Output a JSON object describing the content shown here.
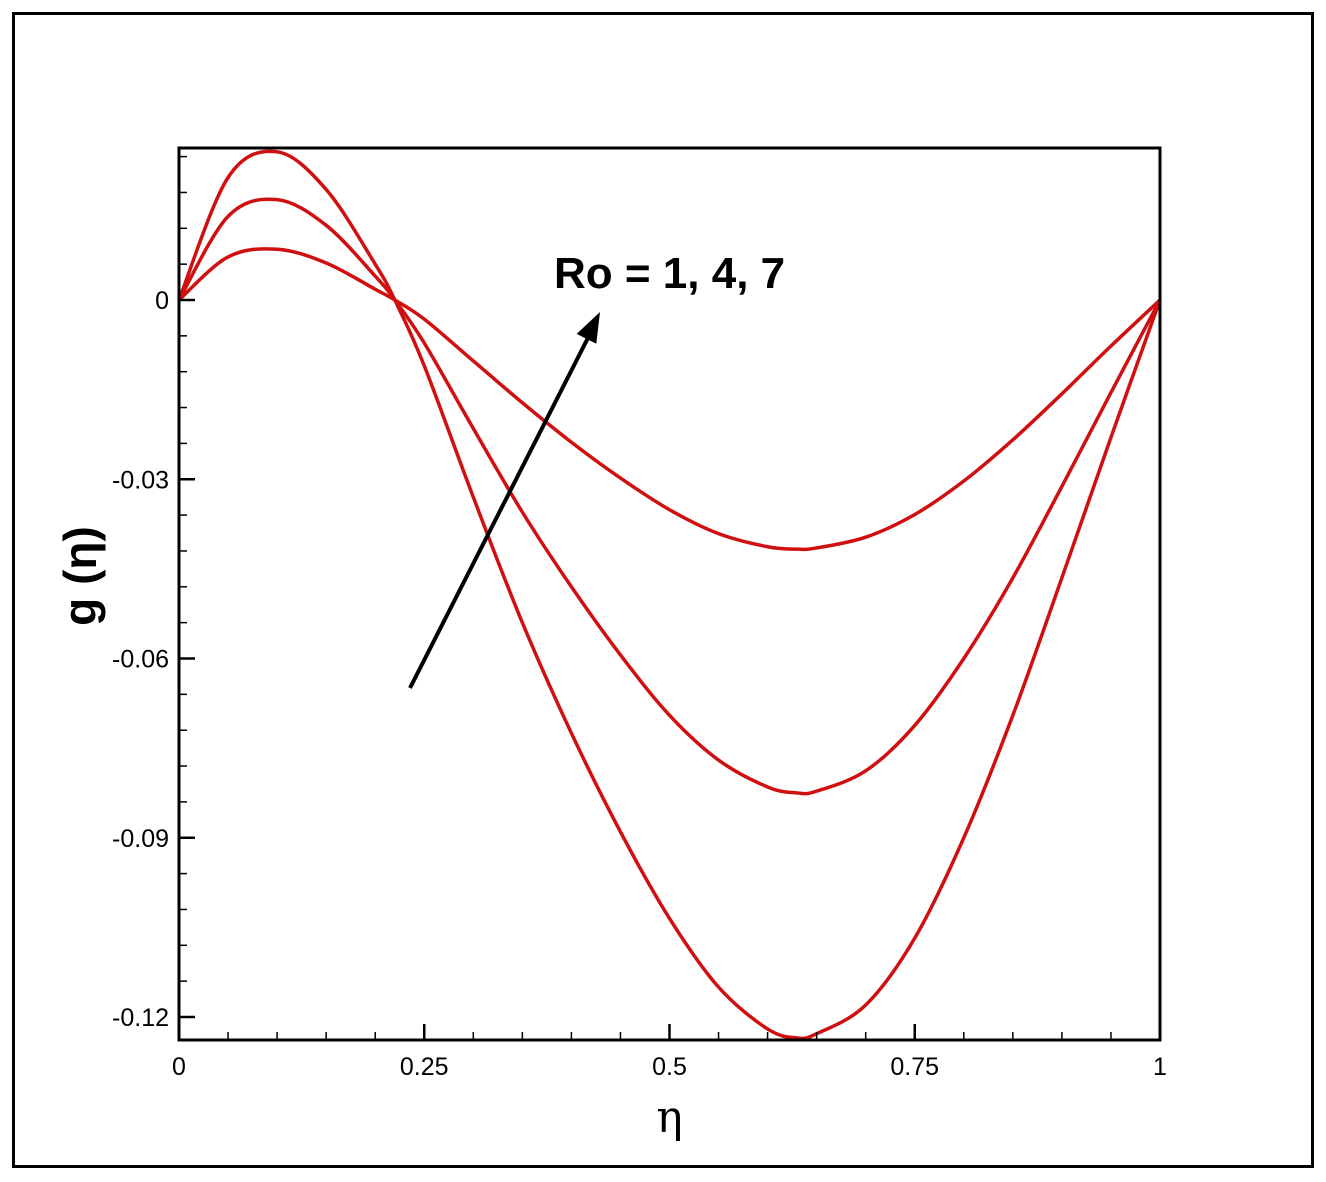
{
  "chart_data": {
    "type": "line",
    "title": "",
    "xlabel": "η",
    "ylabel": "g (η)",
    "xlim": [
      0,
      1
    ],
    "ylim": [
      -0.1235,
      0.0245
    ],
    "xticks": [
      0,
      0.25,
      0.5,
      0.75,
      1
    ],
    "xtick_labels": [
      "0",
      "0.25",
      "0.5",
      "0.75",
      "1"
    ],
    "yticks": [
      0,
      -0.03,
      -0.06,
      -0.09,
      -0.12
    ],
    "ytick_labels": [
      "0",
      "-0.03",
      "-0.06",
      "-0.09",
      "-0.12"
    ],
    "grid": false,
    "annotation": {
      "text": "Ro = 1, 4, 7"
    },
    "series": [
      {
        "color": "#d01010",
        "x": [
          0,
          0.05,
          0.1,
          0.15,
          0.2,
          0.22,
          0.25,
          0.3,
          0.35,
          0.4,
          0.45,
          0.5,
          0.55,
          0.6,
          0.63,
          0.65,
          0.7,
          0.75,
          0.8,
          0.85,
          0.9,
          0.95,
          1.0
        ],
        "y": [
          0,
          0.0072,
          0.0085,
          0.0062,
          0.0018,
          0,
          -0.0032,
          -0.0102,
          -0.0172,
          -0.0238,
          -0.0298,
          -0.0351,
          -0.0391,
          -0.0413,
          -0.0417,
          -0.0415,
          -0.0397,
          -0.0359,
          -0.0303,
          -0.0234,
          -0.0157,
          -0.0077,
          0
        ]
      },
      {
        "color": "#d01010",
        "x": [
          0,
          0.05,
          0.1,
          0.15,
          0.2,
          0.22,
          0.25,
          0.3,
          0.35,
          0.4,
          0.45,
          0.5,
          0.55,
          0.6,
          0.63,
          0.65,
          0.7,
          0.75,
          0.8,
          0.85,
          0.9,
          0.95,
          1.0
        ],
        "y": [
          0,
          0.014,
          0.0168,
          0.0125,
          0.004,
          0,
          -0.0072,
          -0.0215,
          -0.0355,
          -0.048,
          -0.0594,
          -0.0695,
          -0.077,
          -0.0815,
          -0.0825,
          -0.0822,
          -0.0788,
          -0.0712,
          -0.06,
          -0.0465,
          -0.0312,
          -0.0155,
          0
        ]
      },
      {
        "color": "#d01010",
        "x": [
          0,
          0.05,
          0.1,
          0.15,
          0.2,
          0.22,
          0.25,
          0.3,
          0.35,
          0.4,
          0.45,
          0.5,
          0.55,
          0.6,
          0.63,
          0.65,
          0.7,
          0.75,
          0.8,
          0.85,
          0.9,
          0.95,
          1.0
        ],
        "y": [
          0,
          0.0205,
          0.0248,
          0.0185,
          0.006,
          0,
          -0.011,
          -0.033,
          -0.054,
          -0.0725,
          -0.089,
          -0.1035,
          -0.115,
          -0.122,
          -0.1235,
          -0.1228,
          -0.118,
          -0.1068,
          -0.09,
          -0.0695,
          -0.0465,
          -0.023,
          0
        ]
      }
    ]
  }
}
